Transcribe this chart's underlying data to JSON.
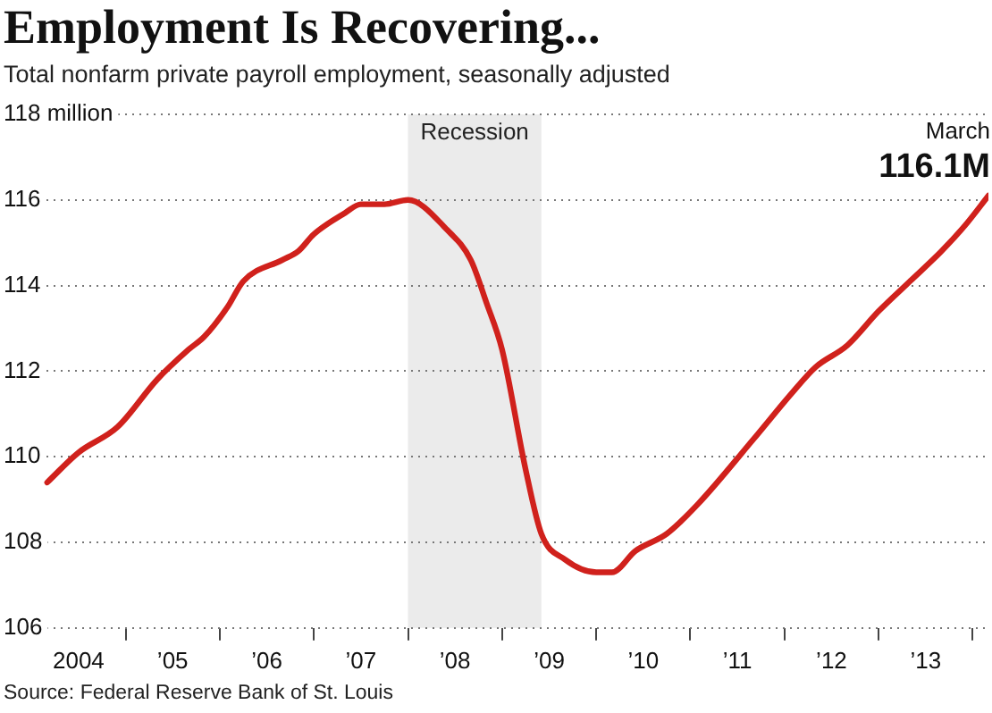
{
  "chart_data": {
    "type": "line",
    "title": "Employment Is Recovering...",
    "subtitle": "Total nonfarm private payroll employment, seasonally adjusted",
    "x": [
      "2004-03",
      "2004-07",
      "2004-12",
      "2005-05",
      "2005-09",
      "2005-11",
      "2006-02",
      "2006-04",
      "2006-09",
      "2006-11",
      "2007-01",
      "2007-05",
      "2007-07",
      "2007-10",
      "2008-01",
      "2008-06",
      "2008-09",
      "2008-11",
      "2009-01",
      "2009-04",
      "2009-06",
      "2009-09",
      "2010-01",
      "2010-03",
      "2010-06",
      "2010-10",
      "2011-02",
      "2011-09",
      "2012-02",
      "2012-05",
      "2012-09",
      "2013-01",
      "2013-05",
      "2013-09",
      "2013-12",
      "2014-03"
    ],
    "series": [
      {
        "color": "#d0211c",
        "values": [
          109.4,
          110.1,
          110.7,
          111.8,
          112.5,
          112.8,
          113.5,
          114.1,
          114.6,
          114.8,
          115.2,
          115.7,
          115.9,
          115.9,
          116.0,
          115.3,
          114.6,
          113.6,
          112.5,
          109.7,
          108.2,
          107.6,
          107.3,
          107.3,
          107.8,
          108.2,
          108.9,
          110.4,
          111.5,
          112.1,
          112.6,
          113.4,
          114.1,
          114.8,
          115.4,
          116.1
        ]
      }
    ],
    "xlim": [
      "2004-02",
      "2014-03"
    ],
    "xticks": [
      {
        "value": "2004-07",
        "label": "2004"
      },
      {
        "value": "2005",
        "label": null
      },
      {
        "value": "2005-07",
        "label": "’05"
      },
      {
        "value": "2006",
        "label": null
      },
      {
        "value": "2006-07",
        "label": "’06"
      },
      {
        "value": "2007",
        "label": null
      },
      {
        "value": "2007-07",
        "label": "’07"
      },
      {
        "value": "2008",
        "label": null
      },
      {
        "value": "2008-07",
        "label": "’08"
      },
      {
        "value": "2009",
        "label": null
      },
      {
        "value": "2009-07",
        "label": "’09"
      },
      {
        "value": "2010",
        "label": null
      },
      {
        "value": "2010-07",
        "label": "’10"
      },
      {
        "value": "2011",
        "label": null
      },
      {
        "value": "2011-07",
        "label": "’11"
      },
      {
        "value": "2012",
        "label": null
      },
      {
        "value": "2012-07",
        "label": "’12"
      },
      {
        "value": "2013",
        "label": null
      },
      {
        "value": "2013-07",
        "label": "’13"
      },
      {
        "value": "2014",
        "label": null
      }
    ],
    "ylim": [
      106,
      118
    ],
    "yticks": [
      106,
      108,
      110,
      112,
      114,
      116,
      {
        "value": 118,
        "label": "118 million"
      }
    ],
    "grid": "y",
    "marker": "none",
    "line_style": "solid",
    "legend": false,
    "bands": [
      {
        "axis": "x",
        "from": "2008-01",
        "to": "2009-06",
        "label": "Recession",
        "color": "#ebebeb"
      }
    ],
    "annotations": [
      {
        "text": "March",
        "x": "2014-03",
        "y": 116.1
      },
      {
        "text": "116.1M",
        "x": "2014-03",
        "y": 116.1
      },
      "Source: Federal Reserve Bank of St. Louis"
    ]
  }
}
